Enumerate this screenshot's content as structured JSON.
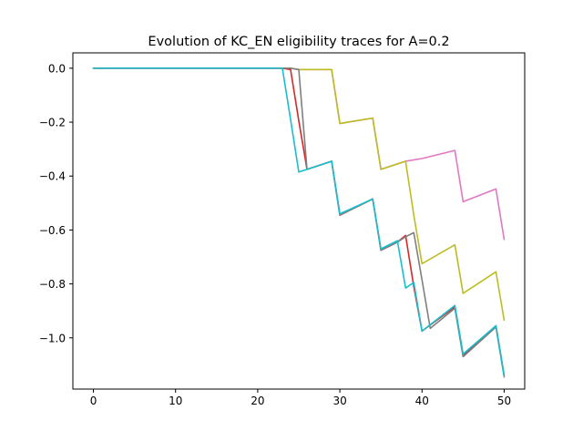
{
  "chart_data": {
    "type": "line",
    "title": "Evolution of KC_EN eligibility traces for A=0.2",
    "xlabel": "",
    "ylabel": "",
    "xlim": [
      -2.5,
      52.5
    ],
    "ylim": [
      -1.19,
      0.057
    ],
    "grid": false,
    "legend": "none",
    "x_ticks": [
      0,
      10,
      20,
      30,
      40,
      50
    ],
    "x_tick_labels": [
      "0",
      "10",
      "20",
      "30",
      "40",
      "50"
    ],
    "y_ticks": [
      0.0,
      -0.2,
      -0.4,
      -0.6,
      -0.8,
      -1.0
    ],
    "y_tick_labels": [
      "0.0",
      "−0.2",
      "−0.4",
      "−0.6",
      "−0.8",
      "−1.0"
    ],
    "series": [
      {
        "color": "#e377c2",
        "points": [
          [
            0,
            0
          ],
          [
            23,
            0
          ],
          [
            24,
            0
          ],
          [
            25,
            -0.005
          ],
          [
            26,
            -0.005
          ],
          [
            29,
            -0.005
          ],
          [
            30,
            -0.205
          ],
          [
            34,
            -0.185
          ],
          [
            35,
            -0.375
          ],
          [
            37,
            -0.355
          ],
          [
            38,
            -0.345
          ],
          [
            40,
            -0.335
          ],
          [
            44,
            -0.305
          ],
          [
            45,
            -0.495
          ],
          [
            49,
            -0.448
          ],
          [
            50,
            -0.635
          ]
        ]
      },
      {
        "color": "#bcbd22",
        "points": [
          [
            0,
            0
          ],
          [
            23,
            0
          ],
          [
            24,
            0
          ],
          [
            25,
            -0.005
          ],
          [
            26,
            -0.005
          ],
          [
            29,
            -0.005
          ],
          [
            30,
            -0.205
          ],
          [
            34,
            -0.185
          ],
          [
            35,
            -0.375
          ],
          [
            38,
            -0.345
          ],
          [
            39,
            -0.545
          ],
          [
            40,
            -0.725
          ],
          [
            44,
            -0.655
          ],
          [
            45,
            -0.835
          ],
          [
            49,
            -0.755
          ],
          [
            50,
            -0.935
          ]
        ]
      },
      {
        "color": "#d62728",
        "points": [
          [
            0,
            0
          ],
          [
            23,
            0
          ],
          [
            24,
            -0.005
          ],
          [
            25,
            -0.195
          ],
          [
            26,
            -0.375
          ],
          [
            29,
            -0.345
          ],
          [
            30,
            -0.545
          ],
          [
            34,
            -0.485
          ],
          [
            35,
            -0.675
          ],
          [
            37,
            -0.645
          ],
          [
            38,
            -0.62
          ],
          [
            39,
            -0.81
          ],
          [
            40,
            -0.975
          ],
          [
            44,
            -0.885
          ],
          [
            45,
            -1.065
          ],
          [
            49,
            -0.955
          ],
          [
            50,
            -1.14
          ]
        ]
      },
      {
        "color": "#7f7f7f",
        "points": [
          [
            0,
            0
          ],
          [
            23,
            0
          ],
          [
            24,
            0
          ],
          [
            25,
            -0.005
          ],
          [
            26,
            -0.375
          ],
          [
            29,
            -0.345
          ],
          [
            30,
            -0.545
          ],
          [
            34,
            -0.485
          ],
          [
            35,
            -0.675
          ],
          [
            37,
            -0.645
          ],
          [
            38,
            -0.625
          ],
          [
            39,
            -0.61
          ],
          [
            40,
            -0.785
          ],
          [
            41,
            -0.965
          ],
          [
            44,
            -0.89
          ],
          [
            45,
            -1.07
          ],
          [
            49,
            -0.96
          ],
          [
            50,
            -1.145
          ]
        ]
      },
      {
        "color": "#17becf",
        "points": [
          [
            0,
            0
          ],
          [
            23,
            0
          ],
          [
            24,
            -0.19
          ],
          [
            25,
            -0.385
          ],
          [
            26,
            -0.375
          ],
          [
            29,
            -0.345
          ],
          [
            30,
            -0.54
          ],
          [
            34,
            -0.485
          ],
          [
            35,
            -0.67
          ],
          [
            37,
            -0.64
          ],
          [
            38,
            -0.815
          ],
          [
            39,
            -0.795
          ],
          [
            40,
            -0.975
          ],
          [
            44,
            -0.88
          ],
          [
            45,
            -1.06
          ],
          [
            49,
            -0.955
          ],
          [
            50,
            -1.14
          ]
        ]
      }
    ]
  }
}
